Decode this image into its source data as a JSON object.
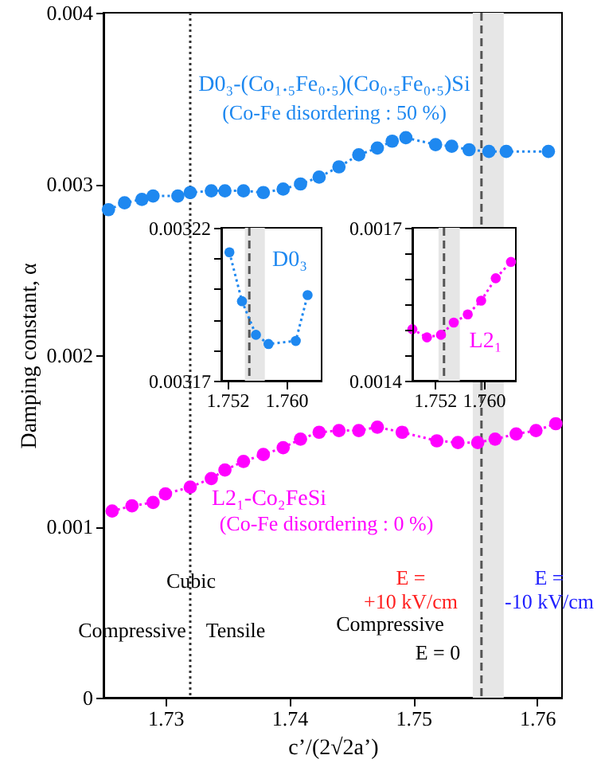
{
  "chart_data": [
    {
      "type": "line",
      "xlabel": "c’/(2√2a’)",
      "ylabel": "Damping constant, α",
      "xlim": [
        1.725,
        1.762
      ],
      "xticks": [
        1.73,
        1.74,
        1.75,
        1.76
      ],
      "ylim": [
        0,
        0.004
      ],
      "yticks": [
        0,
        0.001,
        0.002,
        0.003,
        0.004
      ],
      "grid": false,
      "marker": "circle",
      "line_style": "dotted",
      "series": [
        {
          "name": "D0₃-(Co₁.₅Fe₀.₅)(Co₀.₅Fe₀.₅)Si",
          "color": "#1e88f0",
          "x": [
            1.7254,
            1.7267,
            1.7281,
            1.729,
            1.731,
            1.732,
            1.7337,
            1.7348,
            1.7363,
            1.7379,
            1.7395,
            1.7409,
            1.7424,
            1.744,
            1.7456,
            1.7471,
            1.7483,
            1.7494,
            1.7518,
            1.7531,
            1.7545,
            1.7561,
            1.7575,
            1.7609
          ],
          "values": [
            0.00285,
            0.00289,
            0.00291,
            0.00293,
            0.00293,
            0.00295,
            0.00296,
            0.00296,
            0.00296,
            0.00295,
            0.00297,
            0.003,
            0.00304,
            0.0031,
            0.00317,
            0.00321,
            0.00325,
            0.00327,
            0.00323,
            0.00322,
            0.0032,
            0.00319,
            0.00319,
            0.00319
          ]
        },
        {
          "name": "L2₁-Co₂FeSi",
          "color": "#ff00ff",
          "x": [
            1.7257,
            1.7273,
            1.729,
            1.73,
            1.732,
            1.7337,
            1.7348,
            1.7363,
            1.7379,
            1.7395,
            1.7409,
            1.7424,
            1.744,
            1.7456,
            1.7471,
            1.7491,
            1.7519,
            1.7536,
            1.7552,
            1.7566,
            1.7583,
            1.7599,
            1.7615
          ],
          "values": [
            0.00109,
            0.00112,
            0.00114,
            0.00119,
            0.00123,
            0.00128,
            0.00133,
            0.00138,
            0.00142,
            0.00146,
            0.00151,
            0.00155,
            0.00156,
            0.00156,
            0.00158,
            0.00155,
            0.0015,
            0.00149,
            0.00149,
            0.00151,
            0.00154,
            0.00156,
            0.0016
          ]
        }
      ],
      "ref_lines": [
        {
          "axis": "x",
          "value": 1.732,
          "color": "#333333",
          "line_style": "dotted"
        },
        {
          "axis": "x",
          "value": 1.7555,
          "color": "#555555",
          "line_style": "dashed"
        }
      ],
      "bands": [
        {
          "axis": "x",
          "from": 1.7548,
          "to": 1.7573,
          "color": "#e6e6e6"
        }
      ],
      "annotations": [
        "(Co-Fe disordering : 50 %)",
        "(Co-Fe disordering : 0 %)",
        "Cubic",
        "Compressive",
        "Tensile",
        "E =\n+10 kV/cm",
        "E =\n-10 kV/cm",
        "Compressive",
        "E = 0"
      ]
    },
    {
      "type": "line",
      "xlim": [
        1.7512,
        1.7648
      ],
      "xticks": [
        1.752,
        {
          "value": 1.76,
          "label": "1.760"
        }
      ],
      "ylim": [
        0.00317,
        0.00322
      ],
      "yticks": [
        0.00317,
        {
          "value": 0.00318,
          "label": null
        },
        {
          "value": 0.00319,
          "label": null
        },
        {
          "value": 0.0032,
          "label": null
        },
        {
          "value": 0.00321,
          "label": null
        },
        0.00322
      ],
      "grid": false,
      "marker": "circle",
      "line_style": "dotted",
      "series": [
        {
          "name": "D0₃",
          "color": "#1e88f0",
          "x": [
            1.7523,
            1.754,
            1.7559,
            1.7576,
            1.7613,
            1.7629
          ],
          "values": [
            0.003212,
            0.003196,
            0.003185,
            0.003182,
            0.003183,
            0.003198
          ]
        }
      ],
      "ref_lines": [
        {
          "axis": "x",
          "value": 1.755,
          "color": "#555555",
          "line_style": "dashed"
        }
      ],
      "bands": [
        {
          "axis": "x",
          "from": 1.7544,
          "to": 1.7571,
          "color": "#e6e6e6"
        }
      ]
    },
    {
      "type": "line",
      "xlim": [
        1.7483,
        1.7653
      ],
      "xticks": [
        1.752,
        {
          "value": 1.76,
          "label": "1.760"
        }
      ],
      "ylim": [
        0.0014,
        0.0017
      ],
      "yticks": [
        0.0014,
        {
          "value": 0.00145,
          "label": null
        },
        {
          "value": 0.0015,
          "label": null
        },
        {
          "value": 0.00155,
          "label": null
        },
        {
          "value": 0.0016,
          "label": null
        },
        {
          "value": 0.00165,
          "label": null
        },
        0.0017
      ],
      "grid": false,
      "marker": "circle",
      "line_style": "dotted",
      "series": [
        {
          "name": "L2₁",
          "color": "#ff00ff",
          "x": [
            1.7483,
            1.7507,
            1.753,
            1.7551,
            1.7574,
            1.7596,
            1.762,
            1.7645
          ],
          "values": [
            0.001501,
            0.001485,
            0.00149,
            0.001514,
            0.00153,
            0.001557,
            0.001601,
            0.001633
          ]
        }
      ],
      "ref_lines": [
        {
          "axis": "x",
          "value": 1.7535,
          "color": "#555555",
          "line_style": "dashed"
        }
      ],
      "bands": [
        {
          "axis": "x",
          "from": 1.7526,
          "to": 1.7561,
          "color": "#e6e6e6"
        }
      ]
    }
  ]
}
